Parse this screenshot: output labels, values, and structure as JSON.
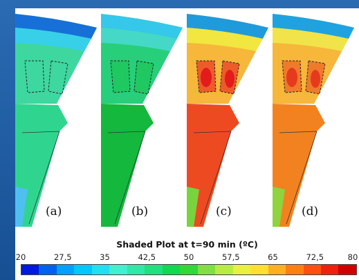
{
  "panels": [
    {
      "label": "(a)",
      "colors": {
        "top": "#1670d8",
        "band": "#38d0e8",
        "upper": "#3ed7a0",
        "slots": "#3ed7a0",
        "slot_hot": "#3ed7a0",
        "lower": "#2fd58f",
        "tip": "#4fbff0"
      }
    },
    {
      "label": "(b)",
      "colors": {
        "top": "#36c8ea",
        "band": "#45d8c6",
        "upper": "#27cf7a",
        "slots": "#1fc860",
        "slot_hot": "#1fc860",
        "lower": "#13b83d",
        "tip": "#13b83d"
      }
    },
    {
      "label": "(c)",
      "colors": {
        "top": "#1f9bdc",
        "band": "#f2e640",
        "upper": "#f6b73a",
        "slots": "#ee5b2a",
        "slot_hot": "#e31b1b",
        "lower": "#ee4a22",
        "tip": "#79d33e"
      }
    },
    {
      "label": "(d)",
      "colors": {
        "top": "#1fa3e0",
        "band": "#f1e34a",
        "upper": "#f6b73a",
        "slots": "#f07a2c",
        "slot_hot": "#e63a1e",
        "lower": "#f2821f",
        "tip": "#8fd33e"
      }
    }
  ],
  "legend": {
    "title": "Shaded Plot at t=90 min (ºC)",
    "ticks": [
      "20",
      "27,5",
      "35",
      "42,5",
      "50",
      "57,5",
      "65",
      "72,5",
      "80"
    ],
    "scale_colors": [
      "#0018e0",
      "#0060f0",
      "#00a0ff",
      "#00c8ff",
      "#20e0f0",
      "#40f0d0",
      "#30e8a8",
      "#20e080",
      "#10d850",
      "#30d838",
      "#80e040",
      "#b8ec40",
      "#e8f040",
      "#ffe030",
      "#ffb020",
      "#ff8010",
      "#ff5010",
      "#f02010",
      "#d00000"
    ]
  }
}
